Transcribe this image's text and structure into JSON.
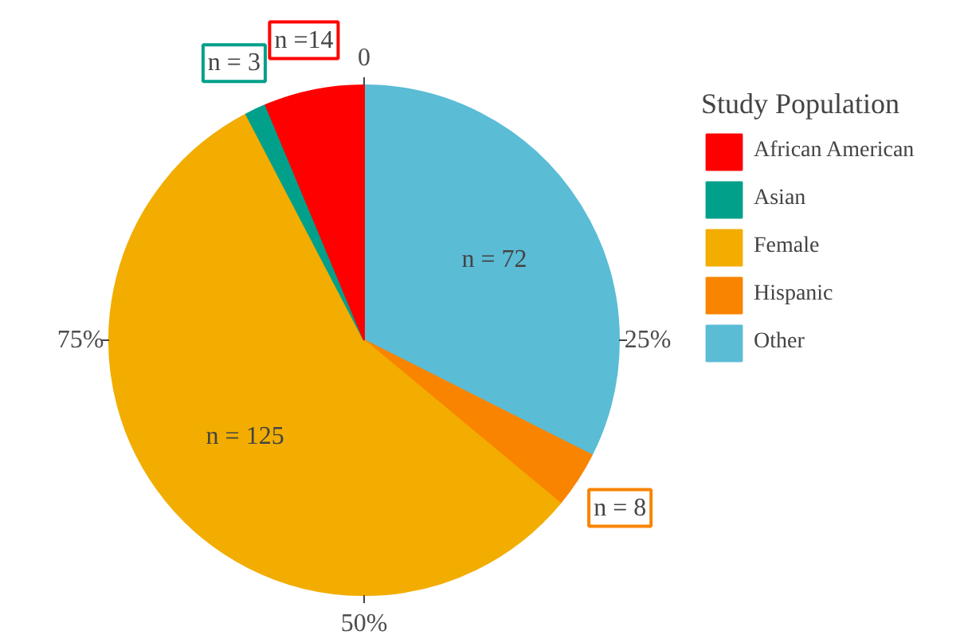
{
  "chart_data": {
    "type": "pie",
    "legend_title": "Study Population",
    "legend": "right",
    "categories": [
      "Other",
      "Hispanic",
      "Female",
      "Asian",
      "African American"
    ],
    "values": [
      72,
      8,
      125,
      3,
      14
    ],
    "colors": [
      "#5bbcd6",
      "#f98400",
      "#f2ad00",
      "#00a08a",
      "#ff0000"
    ],
    "value_labels": [
      "n = 72",
      "n = 8",
      "n = 125",
      "n = 3",
      "n =14"
    ],
    "annotations": [
      "0",
      "25%",
      "50%",
      "75%"
    ]
  }
}
